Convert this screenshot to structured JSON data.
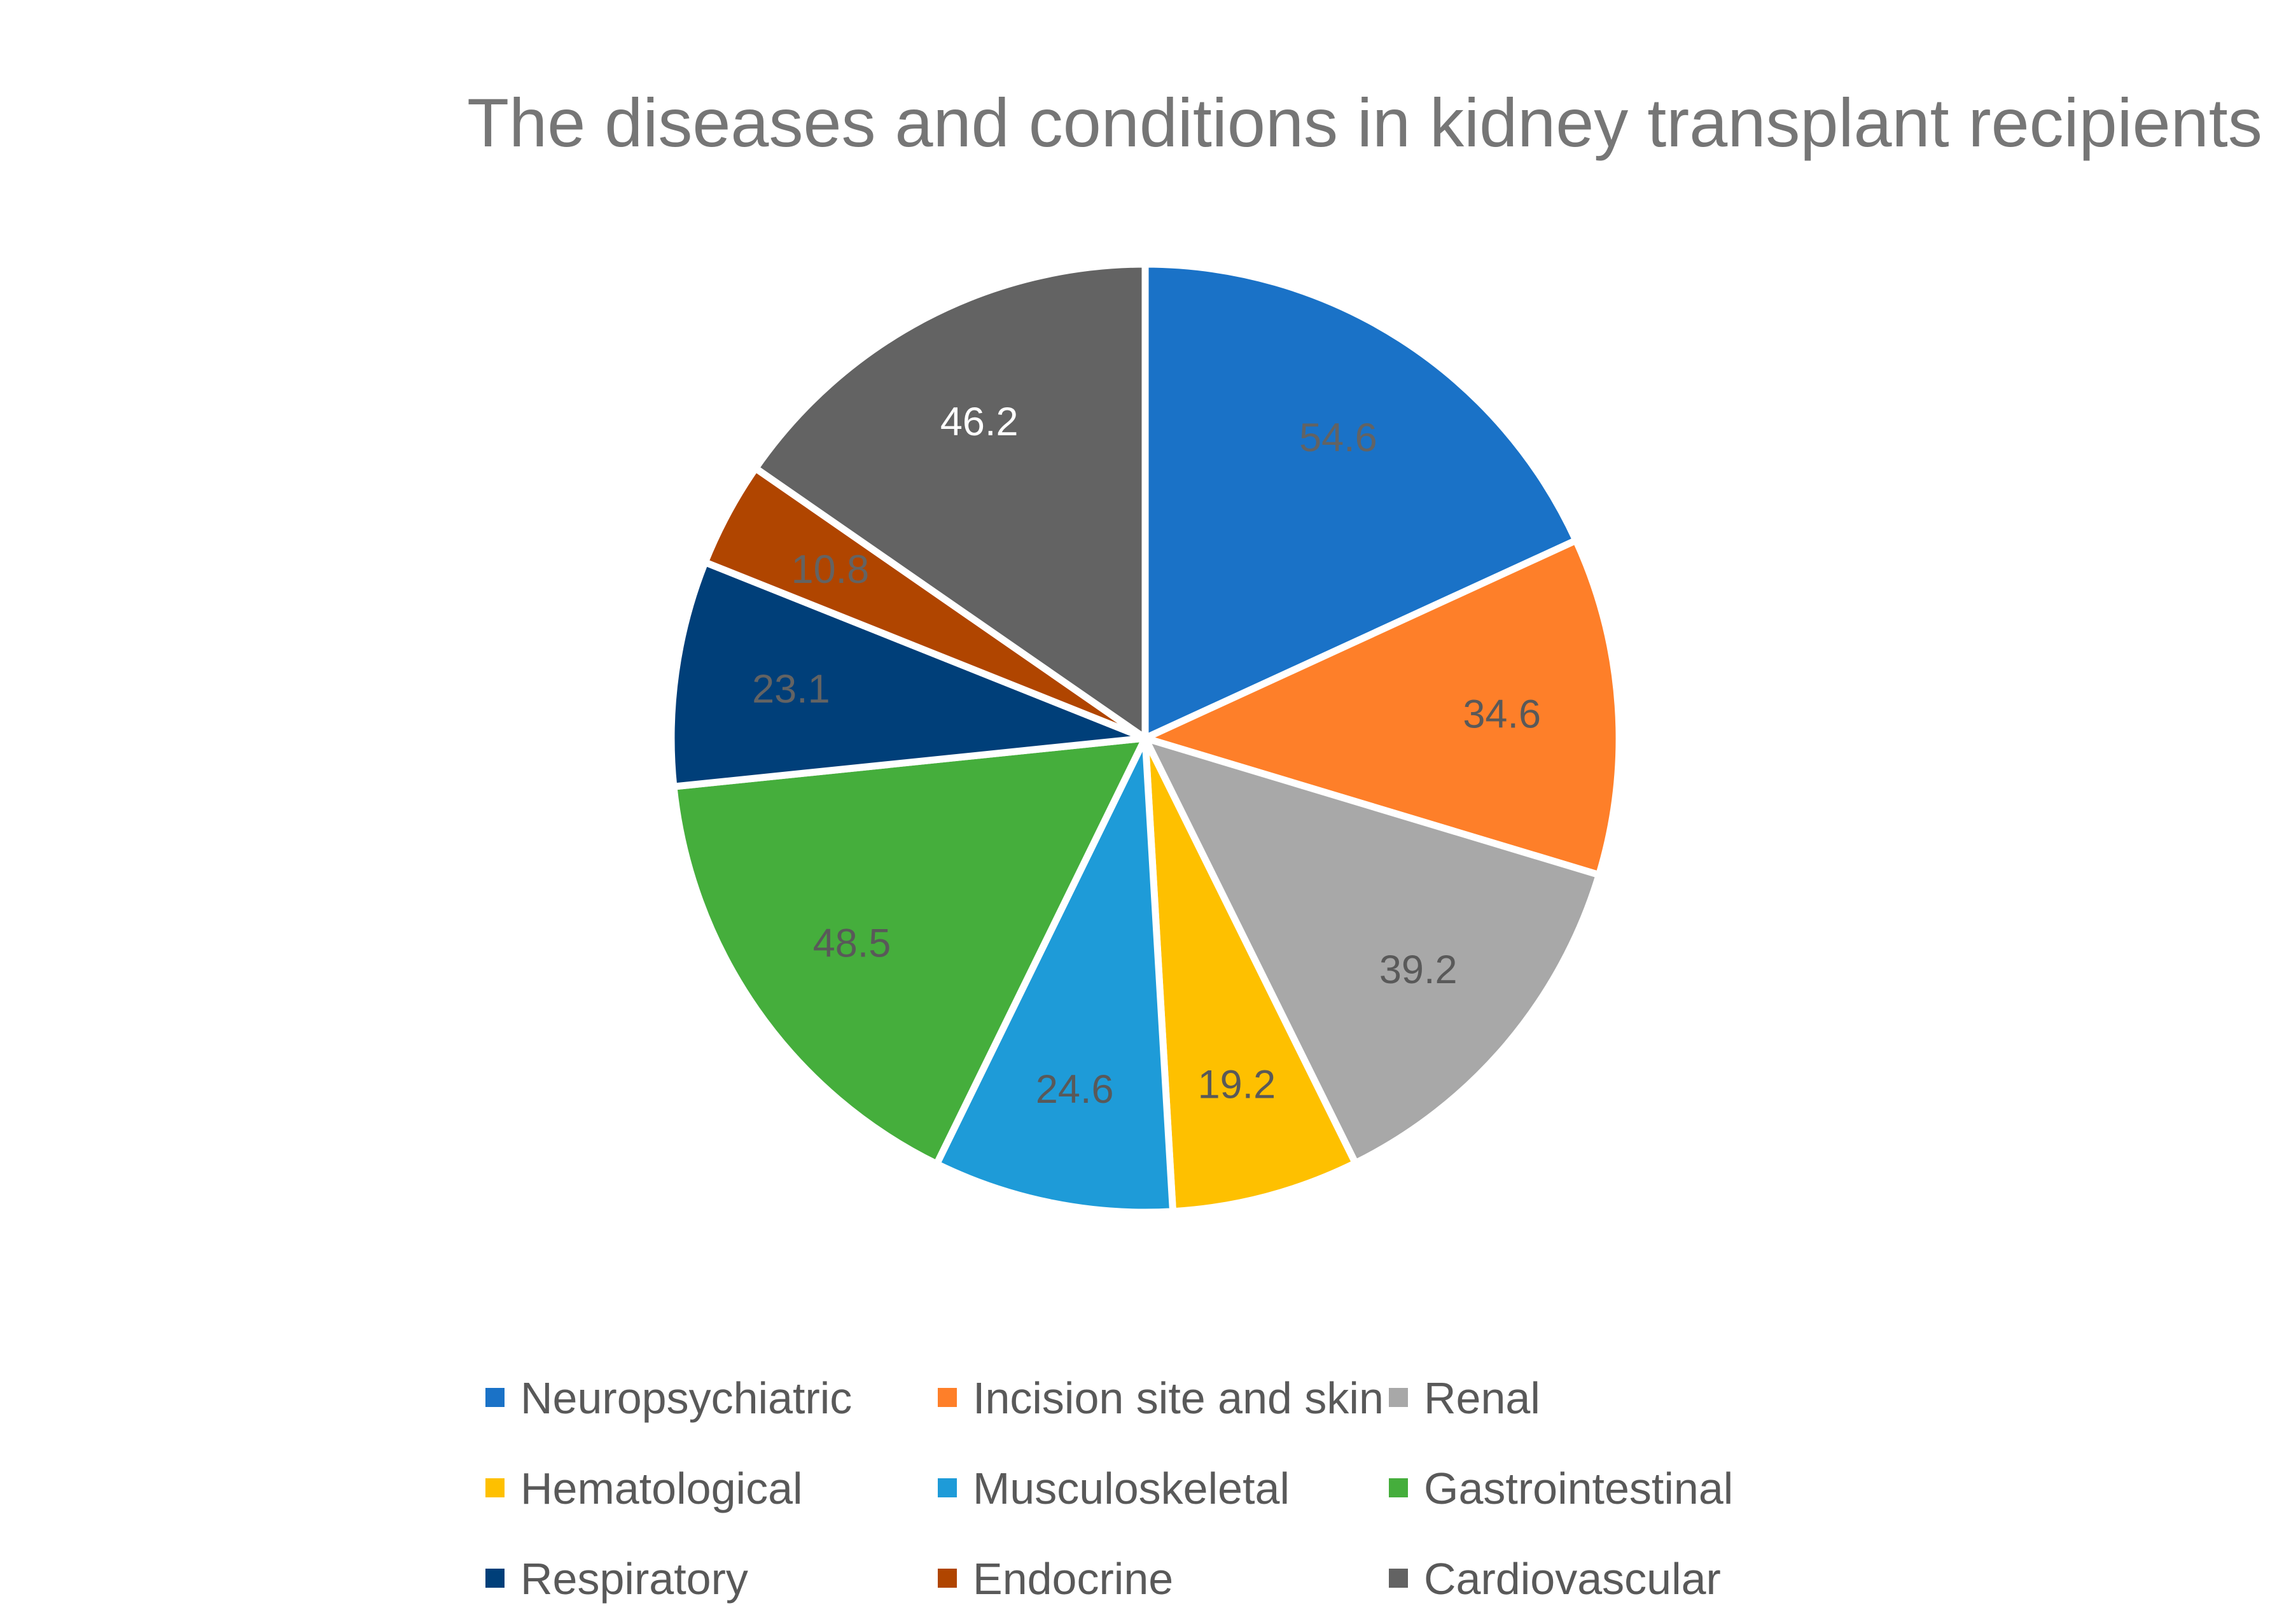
{
  "chart_data": {
    "type": "pie",
    "title": "The diseases and conditions in kidney transplant recipients",
    "categories": [
      "Neuropsychiatric",
      "Incision site and skin",
      "Renal",
      "Hematological",
      "Musculoskeletal",
      "Gastrointestinal",
      "Respiratory",
      "Endocrine",
      "Cardiovascular"
    ],
    "values": [
      54.6,
      34.6,
      39.2,
      19.2,
      24.6,
      48.5,
      23.1,
      10.8,
      46.2
    ],
    "data_labels": [
      "54.6",
      "34.6",
      "39.2",
      "19.2",
      "24.6",
      "48.5",
      "23.1",
      "10.8",
      "46.2"
    ],
    "colors": [
      "#1a72c7",
      "#fe7f29",
      "#a8a8a8",
      "#fec000",
      "#1e9bd8",
      "#45ae3c",
      "#003f79",
      "#b04500",
      "#636363"
    ],
    "label_colors": [
      "#636363",
      "#595959",
      "#595959",
      "#595959",
      "#595959",
      "#595959",
      "#636363",
      "#636363",
      "#ffffff"
    ],
    "start_angle": "12 o'clock",
    "direction": "clockwise",
    "legend_position": "bottom",
    "legend_columns": 3
  }
}
